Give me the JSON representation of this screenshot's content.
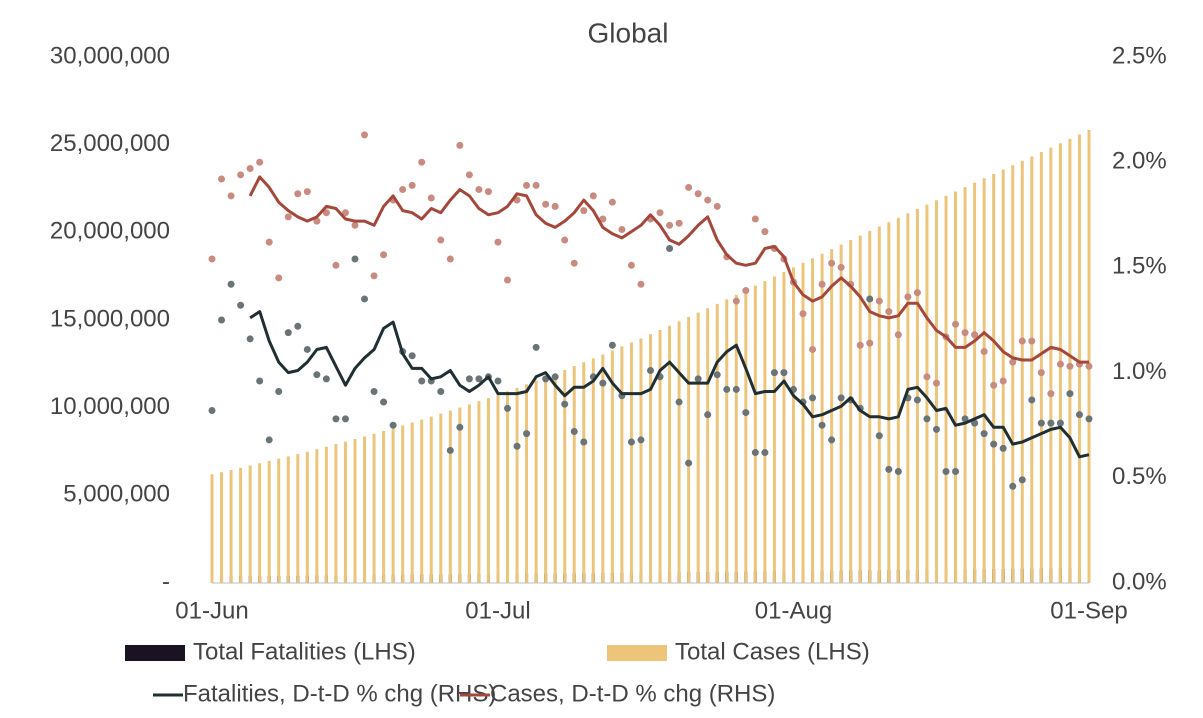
{
  "chart_data": {
    "type": "bar-line",
    "title": "Global",
    "categories": [
      "01-Jun",
      null,
      null,
      null,
      null,
      null,
      null,
      null,
      null,
      null,
      null,
      null,
      null,
      null,
      null,
      null,
      null,
      null,
      null,
      null,
      null,
      null,
      null,
      null,
      null,
      null,
      null,
      null,
      null,
      null,
      "01-Jul",
      null,
      null,
      null,
      null,
      null,
      null,
      null,
      null,
      null,
      null,
      null,
      null,
      null,
      null,
      null,
      null,
      null,
      null,
      null,
      null,
      null,
      null,
      null,
      null,
      null,
      null,
      null,
      null,
      null,
      null,
      "01-Aug",
      null,
      null,
      null,
      null,
      null,
      null,
      null,
      null,
      null,
      null,
      null,
      null,
      null,
      null,
      null,
      null,
      null,
      null,
      null,
      null,
      null,
      null,
      null,
      null,
      null,
      null,
      null,
      null,
      null,
      null,
      "01-Sep"
    ],
    "ylim": [
      0,
      30000000
    ],
    "yticks": [
      {
        "value": 0,
        "label": "-"
      },
      {
        "value": 5000000,
        "label": "5,000,000"
      },
      {
        "value": 10000000,
        "label": "10,000,000"
      },
      {
        "value": 15000000,
        "label": "15,000,000"
      },
      {
        "value": 20000000,
        "label": "20,000,000"
      },
      {
        "value": 25000000,
        "label": "25,000,000"
      },
      {
        "value": 30000000,
        "label": "30,000,000"
      }
    ],
    "y2lim": [
      0,
      2.5
    ],
    "y2ticks": [
      {
        "value": 0,
        "label": "0.0%"
      },
      {
        "value": 0.5,
        "label": "0.5%"
      },
      {
        "value": 1,
        "label": "1.0%"
      },
      {
        "value": 1.5,
        "label": "1.5%"
      },
      {
        "value": 2,
        "label": "2.0%"
      },
      {
        "value": 2.5,
        "label": "2.5%"
      }
    ],
    "series": [
      {
        "name": "Total Fatalities (LHS)",
        "kind": "bar",
        "color": "#1b1322",
        "values": [
          372000,
          377000,
          381000,
          386000,
          391000,
          395000,
          400000,
          405000,
          409000,
          414000,
          419000,
          423000,
          428000,
          433000,
          437000,
          442000,
          447000,
          451000,
          456000,
          461000,
          465000,
          470000,
          475000,
          479000,
          484000,
          489000,
          493000,
          498000,
          503000,
          507000,
          512000,
          517000,
          523000,
          528000,
          534000,
          539000,
          545000,
          550000,
          555000,
          561000,
          566000,
          572000,
          577000,
          583000,
          588000,
          593000,
          599000,
          604000,
          610000,
          615000,
          621000,
          626000,
          631000,
          637000,
          642000,
          648000,
          653000,
          659000,
          664000,
          669000,
          675000,
          680000,
          686000,
          691000,
          697000,
          703000,
          708000,
          714000,
          719000,
          725000,
          731000,
          736000,
          742000,
          747000,
          753000,
          759000,
          764000,
          770000,
          775000,
          781000,
          787000,
          792000,
          798000,
          803000,
          809000,
          815000,
          820000,
          826000,
          831000,
          837000,
          843000,
          848000,
          854000
        ]
      },
      {
        "name": "Total Cases (LHS)",
        "kind": "bar",
        "color": "#ecc57a",
        "values": [
          6200000,
          6320000,
          6440000,
          6570000,
          6700000,
          6830000,
          6960000,
          7090000,
          7220000,
          7350000,
          7490000,
          7630000,
          7770000,
          7920000,
          8060000,
          8210000,
          8360000,
          8510000,
          8670000,
          8830000,
          8990000,
          9150000,
          9320000,
          9490000,
          9660000,
          9830000,
          10010000,
          10190000,
          10370000,
          10550000,
          10740000,
          10930000,
          11130000,
          11330000,
          11530000,
          11730000,
          11940000,
          12150000,
          12370000,
          12590000,
          12810000,
          13030000,
          13260000,
          13490000,
          13720000,
          13950000,
          14190000,
          14430000,
          14670000,
          14920000,
          15170000,
          15420000,
          15670000,
          15920000,
          16180000,
          16440000,
          16700000,
          16960000,
          17220000,
          17480000,
          17740000,
          18000000,
          18260000,
          18520000,
          18780000,
          19040000,
          19300000,
          19560000,
          19820000,
          20080000,
          20330000,
          20580000,
          20830000,
          21080000,
          21330000,
          21580000,
          21830000,
          22080000,
          22330000,
          22580000,
          22830000,
          23080000,
          23330000,
          23580000,
          23830000,
          24080000,
          24330000,
          24580000,
          24830000,
          25080000,
          25330000,
          25580000,
          25840000
        ]
      },
      {
        "name": "Fatalities, D-t-D % chg (RHS)",
        "kind": "line",
        "axis": "y2",
        "color": "#1f2f33",
        "point_color": "#6a7477",
        "values": [
          null,
          null,
          null,
          null,
          1.26,
          1.29,
          1.15,
          1.05,
          1.0,
          1.01,
          1.05,
          1.11,
          1.12,
          1.03,
          0.94,
          1.02,
          1.07,
          1.11,
          1.21,
          1.24,
          1.09,
          1.02,
          1.02,
          0.97,
          0.98,
          1.01,
          0.94,
          0.91,
          0.94,
          0.98,
          0.9,
          0.9,
          0.9,
          0.91,
          0.98,
          1.0,
          0.94,
          0.89,
          0.93,
          0.93,
          0.96,
          1.02,
          0.95,
          0.9,
          0.9,
          0.9,
          0.92,
          1.01,
          1.05,
          1.0,
          0.95,
          0.95,
          0.95,
          1.05,
          1.1,
          1.13,
          1.02,
          0.9,
          0.91,
          0.91,
          0.96,
          0.89,
          0.85,
          0.79,
          0.8,
          0.82,
          0.84,
          0.88,
          0.82,
          0.79,
          0.79,
          0.78,
          0.79,
          0.92,
          0.93,
          0.88,
          0.82,
          0.83,
          0.75,
          0.76,
          0.78,
          0.8,
          0.74,
          0.74,
          0.66,
          0.67,
          0.69,
          0.71,
          0.73,
          0.74,
          0.69,
          0.6,
          0.61
        ],
        "points": [
          0.82,
          1.25,
          1.42,
          1.32,
          1.16,
          0.96,
          0.68,
          0.91,
          1.19,
          1.22,
          1.11,
          0.99,
          0.97,
          0.78,
          0.78,
          1.54,
          1.35,
          0.91,
          0.86,
          0.75,
          1.1,
          1.08,
          0.96,
          0.96,
          0.91,
          0.63,
          0.74,
          0.97,
          0.97,
          0.98,
          0.96,
          0.83,
          0.65,
          0.71,
          1.12,
          0.97,
          0.98,
          0.85,
          0.72,
          0.67,
          0.98,
          0.95,
          1.13,
          0.89,
          0.67,
          0.68,
          1.01,
          0.98,
          1.59,
          0.86,
          0.57,
          0.97,
          0.8,
          0.99,
          0.92,
          0.92,
          0.81,
          0.62,
          0.62,
          1.0,
          1.0,
          0.92,
          0.86,
          0.88,
          0.75,
          0.68,
          0.88,
          0.87,
          0.83,
          1.35,
          0.7,
          0.54,
          0.53,
          0.88,
          0.87,
          0.78,
          0.73,
          0.53,
          0.53,
          0.78,
          0.76,
          0.71,
          0.66,
          0.64,
          0.46,
          0.49,
          0.87,
          0.76,
          0.76,
          0.76,
          0.9,
          0.8,
          0.78
        ]
      },
      {
        "name": "Cases, D-t-D % chg (RHS)",
        "kind": "line",
        "axis": "y2",
        "color": "#a5473b",
        "point_color": "#c98a80",
        "values": [
          null,
          null,
          null,
          null,
          1.84,
          1.93,
          1.88,
          1.81,
          1.77,
          1.74,
          1.72,
          1.74,
          1.79,
          1.78,
          1.73,
          1.72,
          1.72,
          1.7,
          1.79,
          1.84,
          1.77,
          1.76,
          1.73,
          1.78,
          1.76,
          1.82,
          1.87,
          1.84,
          1.78,
          1.75,
          1.76,
          1.79,
          1.85,
          1.84,
          1.75,
          1.71,
          1.69,
          1.72,
          1.76,
          1.82,
          1.77,
          1.69,
          1.66,
          1.64,
          1.67,
          1.7,
          1.75,
          1.7,
          1.63,
          1.61,
          1.65,
          1.7,
          1.74,
          1.63,
          1.56,
          1.52,
          1.51,
          1.52,
          1.59,
          1.6,
          1.55,
          1.43,
          1.37,
          1.34,
          1.36,
          1.41,
          1.45,
          1.41,
          1.36,
          1.29,
          1.27,
          1.26,
          1.27,
          1.33,
          1.33,
          1.26,
          1.2,
          1.17,
          1.12,
          1.12,
          1.15,
          1.19,
          1.15,
          1.1,
          1.07,
          1.06,
          1.06,
          1.09,
          1.12,
          1.11,
          1.08,
          1.05,
          1.05
        ],
        "points": [
          1.54,
          1.92,
          1.84,
          1.94,
          1.97,
          2.0,
          1.62,
          1.45,
          1.74,
          1.85,
          1.86,
          1.72,
          1.76,
          1.51,
          1.76,
          1.7,
          2.13,
          1.46,
          1.56,
          1.82,
          1.87,
          1.89,
          2.0,
          1.83,
          1.63,
          1.54,
          2.08,
          1.94,
          1.87,
          1.86,
          1.62,
          1.44,
          1.82,
          1.89,
          1.89,
          1.8,
          1.79,
          1.63,
          1.52,
          1.77,
          1.84,
          1.73,
          1.81,
          1.68,
          1.51,
          1.42,
          1.73,
          1.76,
          1.7,
          1.71,
          1.88,
          1.85,
          1.82,
          1.79,
          1.55,
          1.34,
          1.39,
          1.73,
          1.67,
          1.59,
          1.54,
          1.43,
          1.28,
          1.11,
          1.42,
          1.52,
          1.5,
          1.42,
          1.13,
          1.14,
          1.34,
          1.29,
          1.18,
          1.36,
          1.38,
          0.98,
          0.95,
          1.17,
          1.23,
          1.19,
          1.18,
          1.1,
          0.94,
          0.96,
          1.05,
          1.15,
          1.15,
          1.0,
          0.9,
          1.04,
          1.03,
          1.04,
          1.03
        ]
      }
    ]
  }
}
